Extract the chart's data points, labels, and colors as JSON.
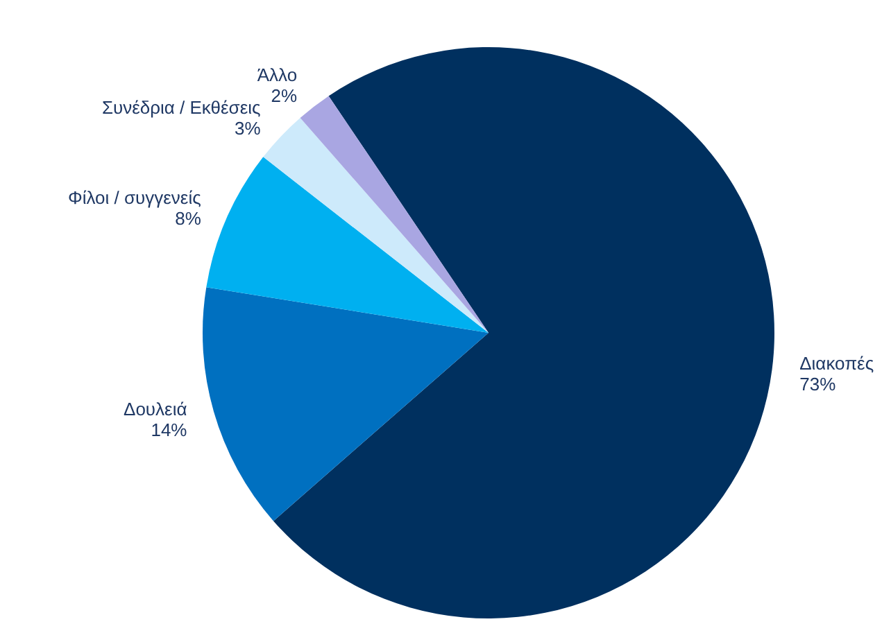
{
  "chart_data": {
    "type": "pie",
    "categories": [
      "Διακοπές",
      "Δουλειά",
      "Φίλοι / συγγενείς",
      "Συνέδρια / Εκθέσεις",
      "Άλλο"
    ],
    "values": [
      73,
      14,
      8,
      3,
      2
    ],
    "colors": [
      "#00305f",
      "#0070c0",
      "#00b0f0",
      "#cdeafb",
      "#a9a6e2"
    ],
    "value_labels": [
      "73%",
      "14%",
      "8%",
      "3%",
      "2%"
    ]
  }
}
